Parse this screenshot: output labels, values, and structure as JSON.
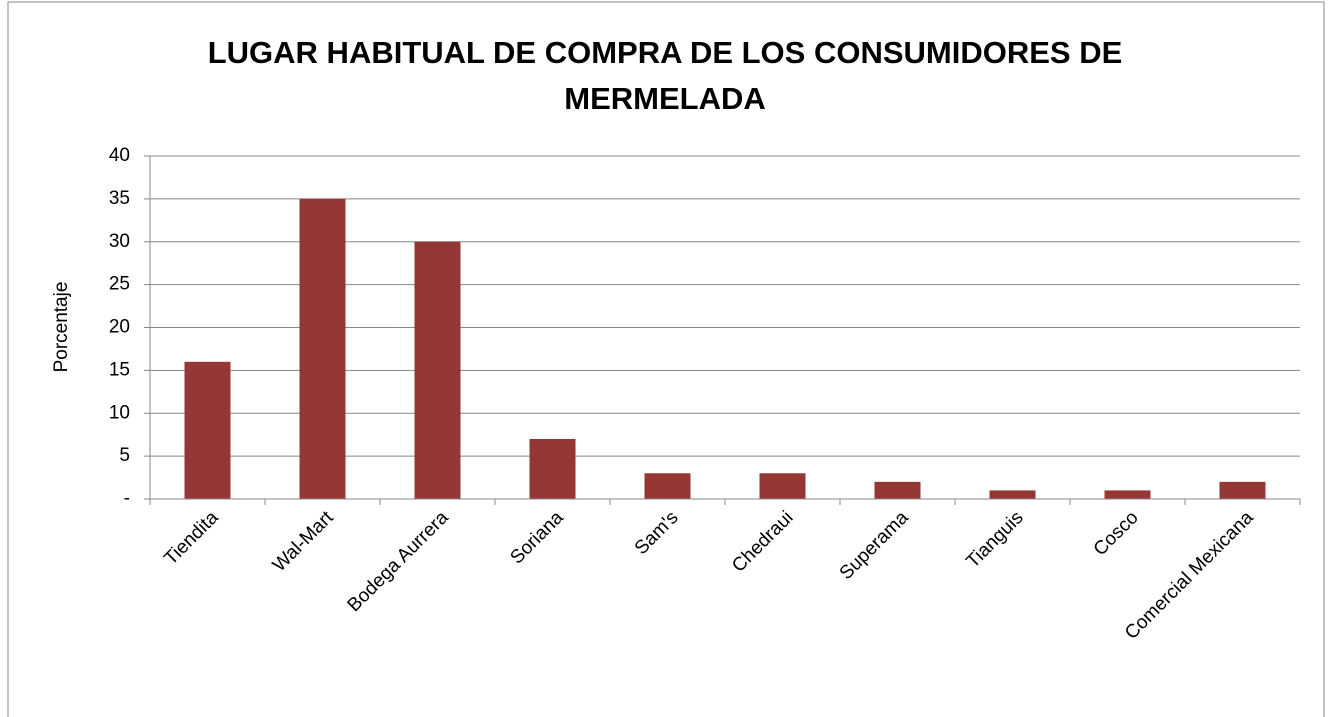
{
  "chart_data": {
    "type": "bar",
    "title": "LUGAR HABITUAL DE COMPRA DE LOS CONSUMIDORES DE MERMELADA",
    "ylabel": "Porcentaje",
    "categories": [
      "Tiendita",
      "Wal-Mart",
      "Bodega Aurrera",
      "Soriana",
      "Sam's",
      "Chedraui",
      "Superama",
      "Tianguis",
      "Cosco",
      "Comercial Mexicana"
    ],
    "values": [
      16,
      35,
      30,
      7,
      3,
      3,
      2,
      1,
      1,
      2
    ],
    "color": "#953735",
    "ylim": [
      0,
      40
    ],
    "yticks": [
      {
        "value": 0,
        "label": "-"
      },
      5,
      10,
      15,
      20,
      25,
      30,
      35,
      40
    ],
    "grid": true
  }
}
